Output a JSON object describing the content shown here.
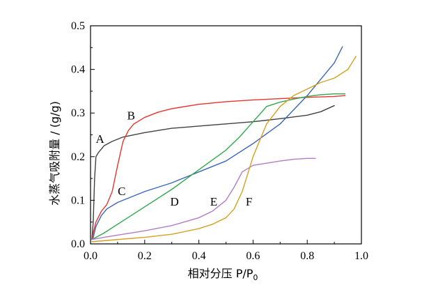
{
  "chart_data": {
    "type": "line",
    "xlabel": "相对分压 P/P",
    "xlabel_sub": "0",
    "ylabel": "水蒸气吸附量 / (g/g)",
    "xlim": [
      0,
      1.0
    ],
    "ylim": [
      0,
      0.5
    ],
    "xticks": [
      "0.0",
      "0.2",
      "0.4",
      "0.6",
      "0.8",
      "1.0"
    ],
    "yticks": [
      "0.0",
      "0.1",
      "0.2",
      "0.3",
      "0.4",
      "0.5"
    ],
    "grid": false,
    "legend": "none",
    "series": [
      {
        "name": "A",
        "color": "#404040",
        "x": [
          0.005,
          0.01,
          0.015,
          0.02,
          0.03,
          0.05,
          0.08,
          0.12,
          0.2,
          0.3,
          0.4,
          0.5,
          0.6,
          0.7,
          0.8,
          0.85,
          0.9
        ],
        "y": [
          0.01,
          0.05,
          0.15,
          0.2,
          0.21,
          0.225,
          0.235,
          0.245,
          0.255,
          0.265,
          0.27,
          0.275,
          0.28,
          0.287,
          0.295,
          0.303,
          0.317
        ]
      },
      {
        "name": "B",
        "color": "#e8342d",
        "x": [
          0.005,
          0.01,
          0.02,
          0.04,
          0.06,
          0.08,
          0.1,
          0.12,
          0.14,
          0.16,
          0.2,
          0.25,
          0.3,
          0.4,
          0.5,
          0.6,
          0.7,
          0.8,
          0.9,
          0.94
        ],
        "y": [
          0.01,
          0.025,
          0.05,
          0.075,
          0.09,
          0.12,
          0.18,
          0.235,
          0.26,
          0.275,
          0.29,
          0.302,
          0.31,
          0.32,
          0.326,
          0.33,
          0.333,
          0.336,
          0.338,
          0.34
        ]
      },
      {
        "name": "C",
        "color": "#3a66b8",
        "x": [
          0.005,
          0.01,
          0.02,
          0.04,
          0.06,
          0.1,
          0.2,
          0.3,
          0.4,
          0.5,
          0.6,
          0.7,
          0.8,
          0.9,
          0.93
        ],
        "y": [
          0.01,
          0.015,
          0.04,
          0.065,
          0.08,
          0.095,
          0.12,
          0.14,
          0.165,
          0.19,
          0.23,
          0.275,
          0.34,
          0.415,
          0.452
        ]
      },
      {
        "name": "D",
        "color": "#2ea84c",
        "x": [
          0.005,
          0.05,
          0.1,
          0.2,
          0.3,
          0.4,
          0.5,
          0.55,
          0.6,
          0.65,
          0.7,
          0.75,
          0.8,
          0.85,
          0.9,
          0.94
        ],
        "y": [
          0.01,
          0.025,
          0.045,
          0.085,
          0.125,
          0.17,
          0.215,
          0.245,
          0.28,
          0.315,
          0.325,
          0.332,
          0.338,
          0.342,
          0.344,
          0.344
        ]
      },
      {
        "name": "E",
        "color": "#b07cc6",
        "x": [
          0.005,
          0.05,
          0.1,
          0.2,
          0.3,
          0.4,
          0.45,
          0.5,
          0.53,
          0.56,
          0.6,
          0.65,
          0.7,
          0.75,
          0.8,
          0.83
        ],
        "y": [
          0.01,
          0.015,
          0.02,
          0.03,
          0.042,
          0.06,
          0.075,
          0.1,
          0.13,
          0.165,
          0.18,
          0.185,
          0.19,
          0.194,
          0.196,
          0.196
        ]
      },
      {
        "name": "F",
        "color": "#d4a020",
        "x": [
          0.005,
          0.1,
          0.2,
          0.3,
          0.4,
          0.45,
          0.5,
          0.53,
          0.56,
          0.6,
          0.65,
          0.7,
          0.75,
          0.8,
          0.85,
          0.9,
          0.95,
          0.98
        ],
        "y": [
          0.005,
          0.01,
          0.015,
          0.022,
          0.035,
          0.045,
          0.06,
          0.08,
          0.12,
          0.2,
          0.275,
          0.315,
          0.34,
          0.355,
          0.37,
          0.38,
          0.4,
          0.43
        ]
      }
    ],
    "annotations": [
      {
        "text": "A",
        "x": 0.035,
        "y": 0.232
      },
      {
        "text": "B",
        "x": 0.15,
        "y": 0.285
      },
      {
        "text": "C",
        "x": 0.115,
        "y": 0.112
      },
      {
        "text": "D",
        "x": 0.31,
        "y": 0.088
      },
      {
        "text": "E",
        "x": 0.455,
        "y": 0.088
      },
      {
        "text": "F",
        "x": 0.585,
        "y": 0.088
      }
    ]
  }
}
